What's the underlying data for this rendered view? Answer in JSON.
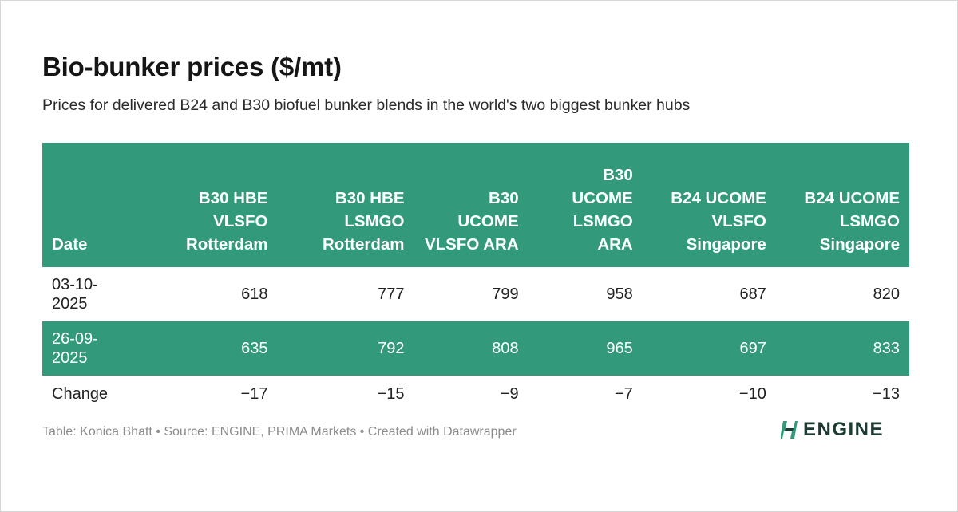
{
  "title": "Bio-bunker prices ($/mt)",
  "subtitle": "Prices for delivered B24 and B30 biofuel bunker blends in the world's two biggest bunker hubs",
  "chart_data": {
    "type": "table",
    "columns": [
      {
        "label": "Date"
      },
      {
        "label": "B30 HBE VLSFO Rotterdam"
      },
      {
        "label": "B30 HBE LSMGO Rotterdam"
      },
      {
        "label": "B30 UCOME VLSFO ARA"
      },
      {
        "label": "B30 UCOME LSMGO ARA"
      },
      {
        "label": "B24 UCOME VLSFO Singapore"
      },
      {
        "label": "B24 UCOME LSMGO Singapore"
      }
    ],
    "rows": [
      {
        "date": "03-10-2025",
        "values": [
          "618",
          "777",
          "799",
          "958",
          "687",
          "820"
        ]
      },
      {
        "date": "26-09-2025",
        "values": [
          "635",
          "792",
          "808",
          "965",
          "697",
          "833"
        ]
      },
      {
        "date": "Change",
        "values": [
          "−17",
          "−15",
          "−9",
          "−7",
          "−10",
          "−13"
        ]
      }
    ],
    "header_color": "#329a7a",
    "stripe_color": "#329a7a"
  },
  "footer": "Table: Konica Bhatt • Source: ENGINE, PRIMA Markets • Created with Datawrapper",
  "logo": {
    "text": "ENGINE",
    "icon": "engine-logo-mark",
    "color": "#1c3b33",
    "accent": "#329a7a"
  }
}
